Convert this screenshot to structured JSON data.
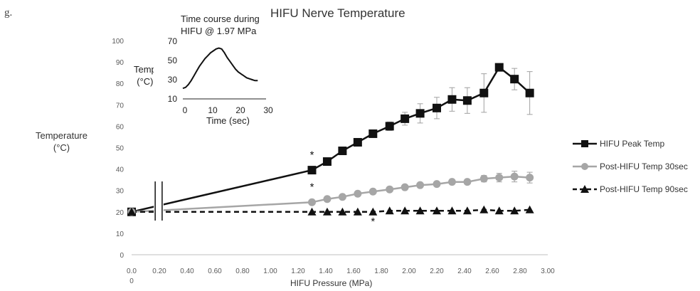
{
  "panel_label": "g.",
  "chart_data": {
    "type": "line",
    "title": "HIFU Nerve Temperature",
    "ylabel_line1": "Temperature",
    "ylabel_unit": "(°C)",
    "xlabel": "HIFU Pressure (MPa)",
    "xlim": [
      0,
      3
    ],
    "ylim": [
      0,
      100
    ],
    "x_ticks": [
      "0.0",
      "0.20",
      "0.40",
      "0.60",
      "0.80",
      "1.00",
      "1.20",
      "1.40",
      "1.60",
      "1.80",
      "2.00",
      "2.20",
      "2.40",
      "2.60",
      "2.80",
      "3.00"
    ],
    "x_tick_values": [
      0,
      0.2,
      0.4,
      0.6,
      0.8,
      1.0,
      1.2,
      1.4,
      1.6,
      1.8,
      2.0,
      2.2,
      2.4,
      2.6,
      2.8,
      3.0
    ],
    "x_extra_label": "0",
    "y_ticks": [
      "0",
      "10",
      "20",
      "30",
      "40",
      "50",
      "60",
      "70",
      "80",
      "90",
      "100"
    ],
    "y_tick_values": [
      0,
      10,
      20,
      30,
      40,
      50,
      60,
      70,
      80,
      90,
      100
    ],
    "grid": false,
    "axis_break": true,
    "legend_position": "right",
    "series": [
      {
        "name": "HIFU Peak Temp",
        "color": "#111111",
        "marker": "square",
        "dash": "solid",
        "x": [
          0.0,
          1.3,
          1.41,
          1.52,
          1.63,
          1.74,
          1.86,
          1.97,
          2.08,
          2.2,
          2.31,
          2.42,
          2.54,
          2.65,
          2.76,
          2.87
        ],
        "y": [
          20,
          39.5,
          43.5,
          48.5,
          52.5,
          56.5,
          60,
          63.5,
          66,
          68.5,
          72.5,
          72,
          75.5,
          87.5,
          82,
          75.5
        ],
        "err": [
          0,
          0,
          0,
          0,
          0,
          0,
          2,
          3,
          4.5,
          5,
          5.5,
          6,
          9,
          0,
          5,
          10
        ]
      },
      {
        "name": "Post-HIFU Temp 30sec",
        "color": "#a6a6a6",
        "marker": "circle",
        "dash": "solid",
        "x": [
          0.0,
          1.3,
          1.41,
          1.52,
          1.63,
          1.74,
          1.86,
          1.97,
          2.08,
          2.2,
          2.31,
          2.42,
          2.54,
          2.65,
          2.76,
          2.87
        ],
        "y": [
          20,
          24.5,
          26,
          27,
          28.5,
          29.5,
          30.5,
          31.5,
          32.5,
          33,
          34,
          34,
          35.5,
          36,
          36.5,
          36
        ],
        "err": [
          0,
          0,
          0,
          0,
          0,
          0,
          0,
          0,
          0,
          0,
          0,
          0,
          1.5,
          2,
          2.5,
          2.5
        ]
      },
      {
        "name": "Post-HIFU Temp 90sec",
        "color": "#111111",
        "marker": "triangle",
        "dash": "dashed",
        "x": [
          0.0,
          1.3,
          1.41,
          1.52,
          1.63,
          1.74,
          1.86,
          1.97,
          2.08,
          2.2,
          2.31,
          2.42,
          2.54,
          2.65,
          2.76,
          2.87
        ],
        "y": [
          20,
          20,
          20,
          20,
          20,
          20,
          20.5,
          20.5,
          20.5,
          20.5,
          20.5,
          20.5,
          21,
          20.5,
          20.5,
          21
        ],
        "err": [
          0,
          0,
          0,
          0,
          0,
          0,
          0,
          0,
          0,
          0,
          0,
          0,
          0,
          0,
          0,
          0
        ]
      }
    ],
    "annotations": [
      {
        "text": "*",
        "x": 1.3,
        "y": 45
      },
      {
        "text": "*",
        "x": 1.3,
        "y": 30
      },
      {
        "text": "*",
        "x": 1.74,
        "y": 14
      }
    ],
    "inset": {
      "title_line1": "Time course during",
      "title_line2": "HIFU @ 1.97 MPa",
      "ylabel_line1": "Temp",
      "ylabel_unit": "(°C)",
      "xlabel": "Time (sec)",
      "xlim": [
        0,
        30
      ],
      "ylim": [
        10,
        70
      ],
      "x_ticks": [
        "0",
        "10",
        "20",
        "30"
      ],
      "x_tick_values": [
        0,
        10,
        20,
        30
      ],
      "y_ticks": [
        "10",
        "30",
        "50",
        "70"
      ],
      "y_tick_values": [
        10,
        30,
        50,
        70
      ],
      "x": [
        0,
        1,
        2,
        3,
        4,
        5,
        6,
        7,
        8,
        9,
        10,
        11,
        12,
        13,
        14,
        15,
        16,
        17,
        18,
        19,
        20,
        21,
        22,
        23,
        24,
        25,
        26,
        27
      ],
      "y": [
        21,
        22,
        25,
        29,
        34,
        39,
        44,
        48,
        52,
        55,
        58,
        60,
        62,
        63,
        62,
        58,
        53,
        49,
        45,
        41,
        38,
        36,
        34,
        32,
        31,
        30,
        29,
        29
      ]
    }
  }
}
